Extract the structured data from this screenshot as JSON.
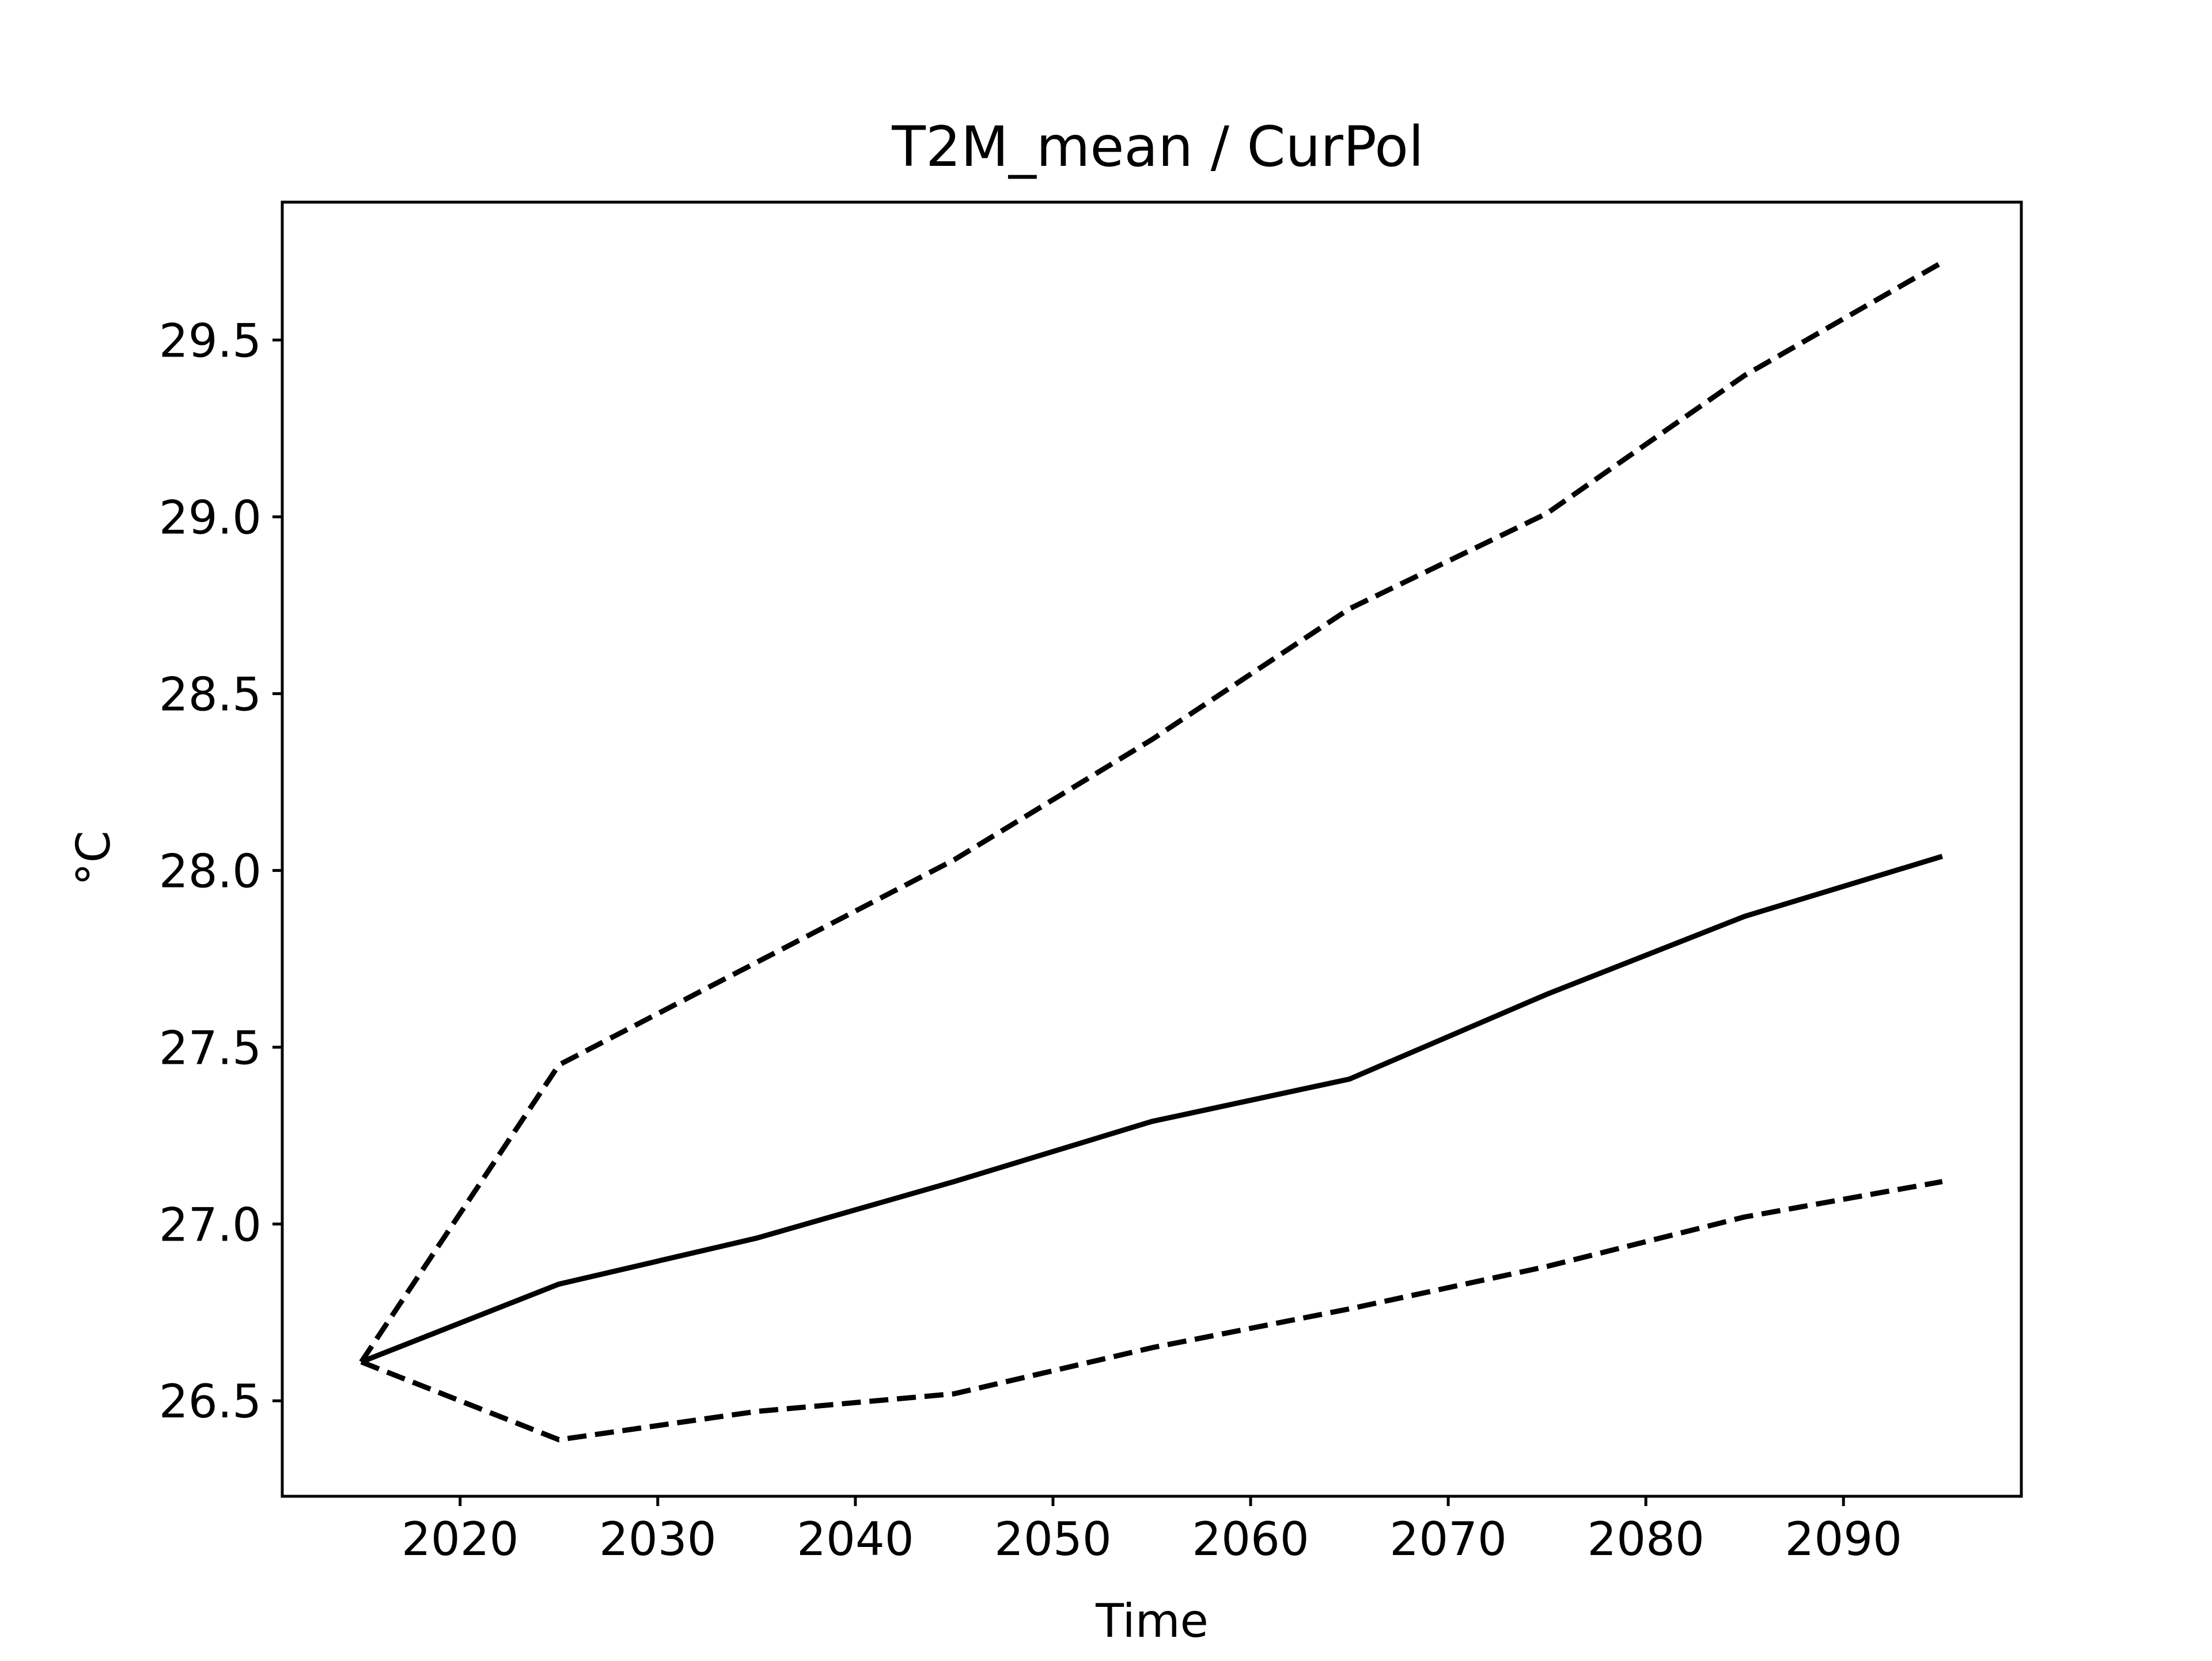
{
  "chart_data": {
    "type": "line",
    "title": "T2M_mean / CurPol",
    "xlabel": "Time",
    "ylabel": "°C",
    "xlim": [
      2011,
      2099
    ],
    "ylim": [
      26.23,
      29.89
    ],
    "x_ticks": [
      2020,
      2030,
      2040,
      2050,
      2060,
      2070,
      2080,
      2090
    ],
    "x_tick_labels": [
      "2020",
      "2030",
      "2040",
      "2050",
      "2060",
      "2070",
      "2080",
      "2090"
    ],
    "y_ticks": [
      26.5,
      27.0,
      27.5,
      28.0,
      28.5,
      29.0,
      29.5
    ],
    "y_tick_labels": [
      "26.5",
      "27.0",
      "27.5",
      "28.0",
      "28.5",
      "29.0",
      "29.5"
    ],
    "grid": false,
    "x": [
      2015,
      2025,
      2035,
      2045,
      2055,
      2065,
      2075,
      2085,
      2095
    ],
    "series": [
      {
        "style": "dashed",
        "color": "#000000",
        "values": [
          26.61,
          27.45,
          27.74,
          28.03,
          28.37,
          28.74,
          29.01,
          29.4,
          29.72
        ]
      },
      {
        "style": "solid",
        "color": "#000000",
        "values": [
          26.61,
          26.83,
          26.96,
          27.12,
          27.29,
          27.41,
          27.65,
          27.87,
          28.04
        ]
      },
      {
        "style": "dashed",
        "color": "#000000",
        "values": [
          26.61,
          26.39,
          26.47,
          26.52,
          26.65,
          26.76,
          26.88,
          27.02,
          27.12
        ]
      }
    ]
  }
}
